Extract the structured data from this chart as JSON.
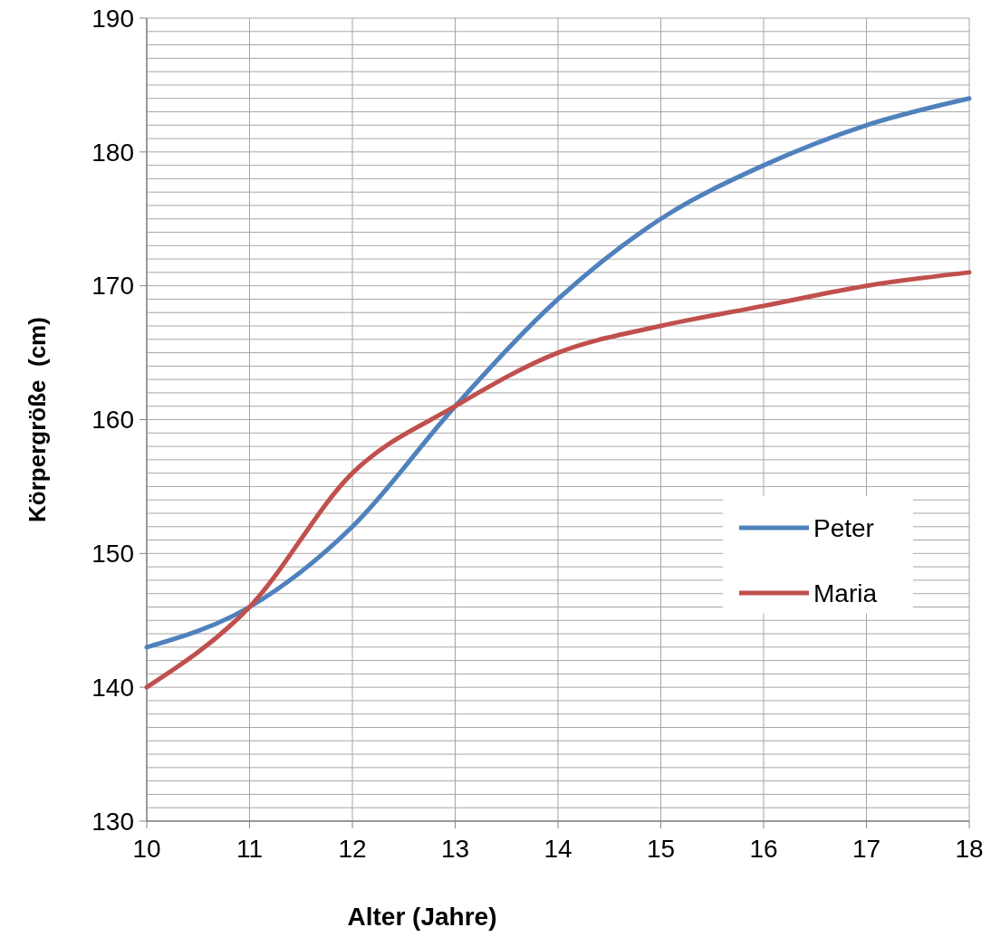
{
  "chart_data": {
    "type": "line",
    "xlabel": "Alter (Jahre)",
    "ylabel": "Körpergröße  (cm)",
    "x": [
      10,
      11,
      12,
      13,
      14,
      15,
      16,
      17,
      18
    ],
    "xlim": [
      10,
      18
    ],
    "xticks": [
      10,
      11,
      12,
      13,
      14,
      15,
      16,
      17,
      18
    ],
    "ylim": [
      130,
      190
    ],
    "yticks": [
      130,
      {
        "value": 131,
        "label": null
      },
      {
        "value": 132,
        "label": null
      },
      {
        "value": 133,
        "label": null
      },
      {
        "value": 134,
        "label": null
      },
      {
        "value": 135,
        "label": null
      },
      {
        "value": 136,
        "label": null
      },
      {
        "value": 137,
        "label": null
      },
      {
        "value": 138,
        "label": null
      },
      {
        "value": 139,
        "label": null
      },
      140,
      {
        "value": 141,
        "label": null
      },
      {
        "value": 142,
        "label": null
      },
      {
        "value": 143,
        "label": null
      },
      {
        "value": 144,
        "label": null
      },
      {
        "value": 145,
        "label": null
      },
      {
        "value": 146,
        "label": null
      },
      {
        "value": 147,
        "label": null
      },
      {
        "value": 148,
        "label": null
      },
      {
        "value": 149,
        "label": null
      },
      150,
      {
        "value": 151,
        "label": null
      },
      {
        "value": 152,
        "label": null
      },
      {
        "value": 153,
        "label": null
      },
      {
        "value": 154,
        "label": null
      },
      {
        "value": 155,
        "label": null
      },
      {
        "value": 156,
        "label": null
      },
      {
        "value": 157,
        "label": null
      },
      {
        "value": 158,
        "label": null
      },
      {
        "value": 159,
        "label": null
      },
      160,
      {
        "value": 161,
        "label": null
      },
      {
        "value": 162,
        "label": null
      },
      {
        "value": 163,
        "label": null
      },
      {
        "value": 164,
        "label": null
      },
      {
        "value": 165,
        "label": null
      },
      {
        "value": 166,
        "label": null
      },
      {
        "value": 167,
        "label": null
      },
      {
        "value": 168,
        "label": null
      },
      {
        "value": 169,
        "label": null
      },
      170,
      {
        "value": 171,
        "label": null
      },
      {
        "value": 172,
        "label": null
      },
      {
        "value": 173,
        "label": null
      },
      {
        "value": 174,
        "label": null
      },
      {
        "value": 175,
        "label": null
      },
      {
        "value": 176,
        "label": null
      },
      {
        "value": 177,
        "label": null
      },
      {
        "value": 178,
        "label": null
      },
      {
        "value": 179,
        "label": null
      },
      180,
      {
        "value": 181,
        "label": null
      },
      {
        "value": 182,
        "label": null
      },
      {
        "value": 183,
        "label": null
      },
      {
        "value": 184,
        "label": null
      },
      {
        "value": 185,
        "label": null
      },
      {
        "value": 186,
        "label": null
      },
      {
        "value": 187,
        "label": null
      },
      {
        "value": 188,
        "label": null
      },
      {
        "value": 189,
        "label": null
      },
      190
    ],
    "grid": true,
    "legend": "right",
    "marker": "none",
    "line_style": "solid",
    "series": [
      {
        "name": "Peter",
        "color": "#4f81bd",
        "values": [
          143,
          146,
          152,
          161,
          169,
          175,
          179,
          182,
          184
        ]
      },
      {
        "name": "Maria",
        "color": "#c0504d",
        "values": [
          140,
          146,
          156,
          161,
          165,
          167,
          168.5,
          170,
          171
        ]
      }
    ]
  }
}
